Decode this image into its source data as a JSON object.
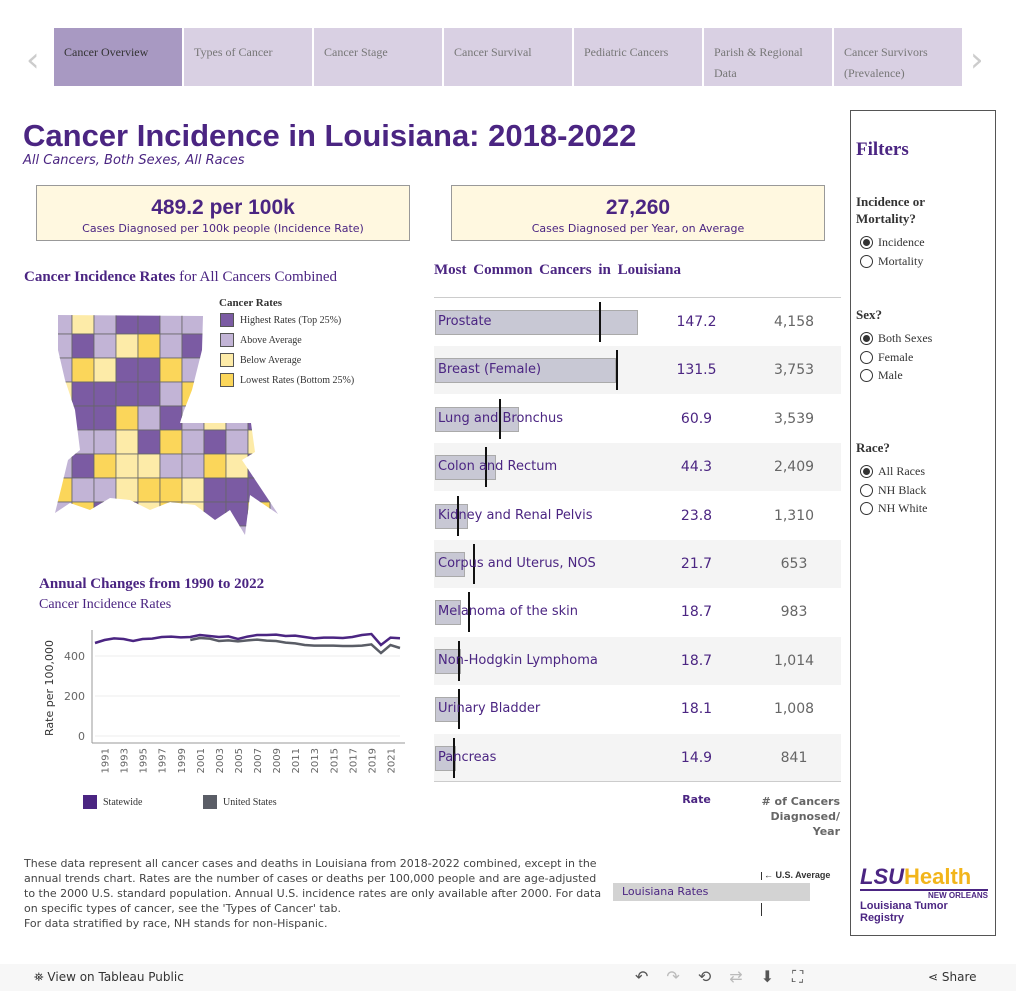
{
  "tabs": [
    {
      "label": "Cancer Overview",
      "active": true
    },
    {
      "label": "Types of Cancer"
    },
    {
      "label": "Cancer Stage"
    },
    {
      "label": "Cancer Survival"
    },
    {
      "label": "Pediatric Cancers"
    },
    {
      "label": "Parish & Regional Data"
    },
    {
      "label": "Cancer Survivors (Prevalence)"
    }
  ],
  "header": {
    "title": "Cancer Incidence in Louisiana: 2018-2022",
    "subtitle": "All Cancers, Both Sexes, All Races"
  },
  "kpis": [
    {
      "value": "489.2 per 100k",
      "label": "Cases Diagnosed per 100k people (Incidence Rate)"
    },
    {
      "value": "27,260",
      "label": "Cases Diagnosed per Year, on Average"
    }
  ],
  "map": {
    "title_a": "Cancer Incidence Rates",
    "title_b": "for All Cancers Combined",
    "legend_title": "Cancer Rates",
    "legend": [
      {
        "label": "Highest Rates (Top 25%)",
        "color": "#7b5ba3"
      },
      {
        "label": "Above Average",
        "color": "#c2b4d6"
      },
      {
        "label": "Below Average",
        "color": "#fdeba8"
      },
      {
        "label": "Lowest Rates (Bottom 25%)",
        "color": "#fbd65a"
      }
    ]
  },
  "trend": {
    "title": "Annual Changes from 1990 to 2022",
    "subtitle": "Cancer Incidence Rates",
    "legend": [
      {
        "label": "Statewide",
        "color": "#4b2582"
      },
      {
        "label": "United States",
        "color": "#5a5d66"
      }
    ]
  },
  "chart_data": [
    {
      "type": "line",
      "ylabel": "Rate per 100,000",
      "ylim": [
        0,
        530
      ],
      "yticks": [
        0,
        200,
        400
      ],
      "xticks": [
        "1991",
        "1993",
        "1995",
        "1997",
        "1999",
        "2001",
        "2003",
        "2005",
        "2007",
        "2009",
        "2011",
        "2013",
        "2015",
        "2017",
        "2019",
        "2021"
      ],
      "grid": true,
      "series": [
        {
          "name": "Statewide",
          "color": "#4b2582",
          "x": [
            1990,
            1991,
            1992,
            1993,
            1994,
            1995,
            1996,
            1997,
            1998,
            1999,
            2000,
            2001,
            2002,
            2003,
            2004,
            2005,
            2006,
            2007,
            2008,
            2009,
            2010,
            2011,
            2012,
            2013,
            2014,
            2015,
            2016,
            2017,
            2018,
            2019,
            2020,
            2021,
            2022
          ],
          "values": [
            465,
            480,
            488,
            485,
            475,
            485,
            487,
            495,
            497,
            493,
            495,
            505,
            500,
            495,
            498,
            485,
            497,
            505,
            505,
            507,
            500,
            502,
            495,
            488,
            492,
            492,
            490,
            495,
            505,
            510,
            455,
            492,
            489
          ]
        },
        {
          "name": "United States",
          "color": "#5a5d66",
          "x": [
            2000,
            2001,
            2002,
            2003,
            2004,
            2005,
            2006,
            2007,
            2008,
            2009,
            2010,
            2011,
            2012,
            2013,
            2014,
            2015,
            2016,
            2017,
            2018,
            2019,
            2020,
            2021,
            2022
          ],
          "values": [
            480,
            490,
            487,
            475,
            478,
            473,
            478,
            482,
            477,
            475,
            467,
            463,
            455,
            452,
            452,
            452,
            450,
            450,
            452,
            458,
            415,
            455,
            440
          ]
        }
      ]
    },
    {
      "type": "bar",
      "title": "Most Common Cancers in Louisiana",
      "column_headers": [
        "Rate",
        "# of Cancers Diagnosed/ Year"
      ],
      "rows": [
        {
          "name": "Prostate",
          "rate": 147.2,
          "rate_label": "147.2",
          "count": "4,158",
          "us_avg": 120
        },
        {
          "name": "Breast (Female)",
          "rate": 131.5,
          "rate_label": "131.5",
          "count": "3,753",
          "us_avg": 132
        },
        {
          "name": "Lung and Bronchus",
          "rate": 60.9,
          "rate_label": "60.9",
          "count": "3,539",
          "us_avg": 47
        },
        {
          "name": "Colon and Rectum",
          "rate": 44.3,
          "rate_label": "44.3",
          "count": "2,409",
          "us_avg": 37
        },
        {
          "name": "Kidney and Renal Pelvis",
          "rate": 23.8,
          "rate_label": "23.8",
          "count": "1,310",
          "us_avg": 17
        },
        {
          "name": "Corpus and Uterus, NOS",
          "rate": 21.7,
          "rate_label": "21.7",
          "count": "653",
          "us_avg": 28
        },
        {
          "name": "Melanoma of the skin",
          "rate": 18.7,
          "rate_label": "18.7",
          "count": "983",
          "us_avg": 25
        },
        {
          "name": "Non-Hodgkin Lymphoma",
          "rate": 18.7,
          "rate_label": "18.7",
          "count": "1,014",
          "us_avg": 17.5
        },
        {
          "name": "Urinary Bladder",
          "rate": 18.1,
          "rate_label": "18.1",
          "count": "1,008",
          "us_avg": 17.5
        },
        {
          "name": "Pancreas",
          "rate": 14.9,
          "rate_label": "14.9",
          "count": "841",
          "us_avg": 14
        }
      ]
    }
  ],
  "bar_legend": {
    "us": "U.S. Average",
    "la": "Louisiana Rates"
  },
  "note": [
    "These data represent all cancer cases and deaths in Louisiana from 2018-2022 combined, except in the annual trends chart. Rates are the number of cases or deaths per 100,000 people and are age-adjusted to the 2000 U.S. standard population. Annual U.S. incidence rates are only available after 2000. For data on specific types of cancer, see the 'Types of Cancer' tab.",
    "For data stratified by race, NH stands for non-Hispanic."
  ],
  "filters": {
    "title": "Filters",
    "groups": [
      {
        "label": "Incidence or Mortality?",
        "options": [
          "Incidence",
          "Mortality"
        ],
        "selected": 0
      },
      {
        "label": "Sex?",
        "options": [
          "Both Sexes",
          "Female",
          "Male"
        ],
        "selected": 0
      },
      {
        "label": "Race?",
        "options": [
          "All Races",
          "NH Black",
          "NH White"
        ],
        "selected": 0
      }
    ]
  },
  "logo": {
    "a": "LSU",
    "b": "Health",
    "c": "NEW ORLEANS",
    "d": "Louisiana Tumor Registry"
  },
  "footer": {
    "view": "View on Tableau Public",
    "share": "Share"
  }
}
